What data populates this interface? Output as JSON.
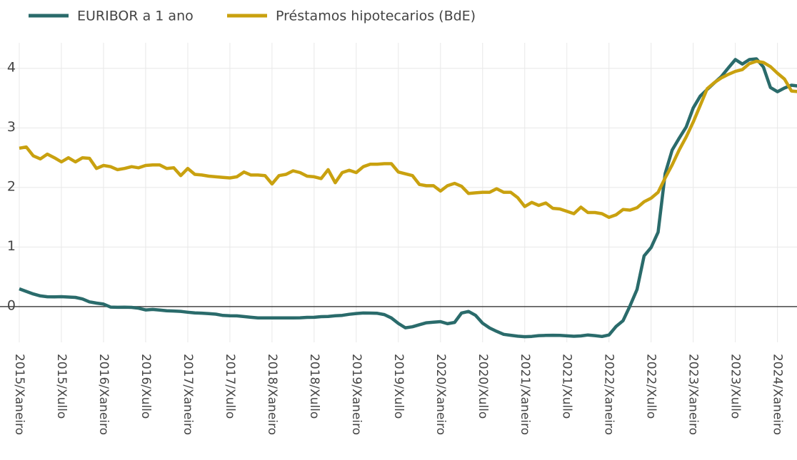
{
  "chart_data": {
    "type": "line",
    "categories": [
      "2015/Xaneiro",
      null,
      null,
      null,
      null,
      null,
      "2015/Xullo",
      null,
      null,
      null,
      null,
      null,
      "2016/Xaneiro",
      null,
      null,
      null,
      null,
      null,
      "2016/Xullo",
      null,
      null,
      null,
      null,
      null,
      "2017/Xaneiro",
      null,
      null,
      null,
      null,
      null,
      "2017/Xullo",
      null,
      null,
      null,
      null,
      null,
      "2018/Xaneiro",
      null,
      null,
      null,
      null,
      null,
      "2018/Xullo",
      null,
      null,
      null,
      null,
      null,
      "2019/Xaneiro",
      null,
      null,
      null,
      null,
      null,
      "2019/Xullo",
      null,
      null,
      null,
      null,
      null,
      "2020/Xaneiro",
      null,
      null,
      null,
      null,
      null,
      "2020/Xullo",
      null,
      null,
      null,
      null,
      null,
      "2021/Xaneiro",
      null,
      null,
      null,
      null,
      null,
      "2021/Xullo",
      null,
      null,
      null,
      null,
      null,
      "2022/Xaneiro",
      null,
      null,
      null,
      null,
      null,
      "2022/Xullo",
      null,
      null,
      null,
      null,
      null,
      "2023/Xaneiro",
      null,
      null,
      null,
      null,
      null,
      "2023/Xullo",
      null,
      null,
      null,
      null,
      null,
      "2024/Xaneiro",
      null,
      null,
      null
    ],
    "series": [
      {
        "name": "EURIBOR a 1 ano",
        "color": "#2a6b6b",
        "values": [
          0.298,
          0.255,
          0.212,
          0.18,
          0.165,
          0.163,
          0.167,
          0.161,
          0.154,
          0.128,
          0.079,
          0.059,
          0.042,
          -0.008,
          -0.012,
          -0.01,
          -0.013,
          -0.028,
          -0.056,
          -0.048,
          -0.057,
          -0.069,
          -0.074,
          -0.08,
          -0.095,
          -0.106,
          -0.11,
          -0.119,
          -0.127,
          -0.149,
          -0.154,
          -0.156,
          -0.168,
          -0.18,
          -0.189,
          -0.19,
          -0.189,
          -0.191,
          -0.191,
          -0.19,
          -0.188,
          -0.181,
          -0.18,
          -0.169,
          -0.166,
          -0.154,
          -0.147,
          -0.129,
          -0.116,
          -0.108,
          -0.109,
          -0.112,
          -0.134,
          -0.19,
          -0.283,
          -0.356,
          -0.339,
          -0.304,
          -0.272,
          -0.261,
          -0.253,
          -0.288,
          -0.266,
          -0.108,
          -0.081,
          -0.147,
          -0.279,
          -0.359,
          -0.415,
          -0.466,
          -0.481,
          -0.497,
          -0.505,
          -0.501,
          -0.487,
          -0.484,
          -0.481,
          -0.484,
          -0.491,
          -0.498,
          -0.492,
          -0.477,
          -0.487,
          -0.502,
          -0.477,
          -0.335,
          -0.237,
          0.013,
          0.287,
          0.852,
          0.992,
          1.249,
          2.233,
          2.629,
          2.828,
          3.018,
          3.337,
          3.534,
          3.647,
          3.757,
          3.862,
          4.007,
          4.149,
          4.073,
          4.149,
          4.16,
          4.022,
          3.679,
          3.609,
          3.671,
          3.718,
          3.703
        ]
      },
      {
        "name": "Préstamos hipotecarios (BdE)",
        "color": "#c9a10f",
        "values": [
          2.66,
          2.68,
          2.53,
          2.48,
          2.56,
          2.5,
          2.43,
          2.5,
          2.43,
          2.5,
          2.49,
          2.32,
          2.37,
          2.35,
          2.3,
          2.32,
          2.35,
          2.33,
          2.37,
          2.38,
          2.38,
          2.32,
          2.33,
          2.2,
          2.32,
          2.22,
          2.21,
          2.19,
          2.18,
          2.17,
          2.16,
          2.18,
          2.26,
          2.21,
          2.21,
          2.2,
          2.06,
          2.2,
          2.22,
          2.28,
          2.25,
          2.19,
          2.18,
          2.15,
          2.3,
          2.08,
          2.25,
          2.29,
          2.25,
          2.35,
          2.39,
          2.39,
          2.4,
          2.4,
          2.26,
          2.23,
          2.2,
          2.05,
          2.03,
          2.03,
          1.94,
          2.03,
          2.07,
          2.02,
          1.9,
          1.91,
          1.92,
          1.92,
          1.98,
          1.92,
          1.92,
          1.83,
          1.68,
          1.75,
          1.7,
          1.74,
          1.65,
          1.64,
          1.6,
          1.56,
          1.67,
          1.58,
          1.58,
          1.56,
          1.5,
          1.54,
          1.63,
          1.62,
          1.66,
          1.76,
          1.82,
          1.92,
          2.16,
          2.38,
          2.63,
          2.85,
          3.1,
          3.38,
          3.66,
          3.76,
          3.84,
          3.9,
          3.95,
          3.98,
          4.08,
          4.12,
          4.1,
          4.03,
          3.92,
          3.82,
          3.62,
          3.61
        ]
      }
    ],
    "ylim": [
      -0.6,
      4.43
    ],
    "yticks": [
      0,
      1,
      2,
      3,
      4
    ],
    "grid": true,
    "legend": "top-left"
  }
}
